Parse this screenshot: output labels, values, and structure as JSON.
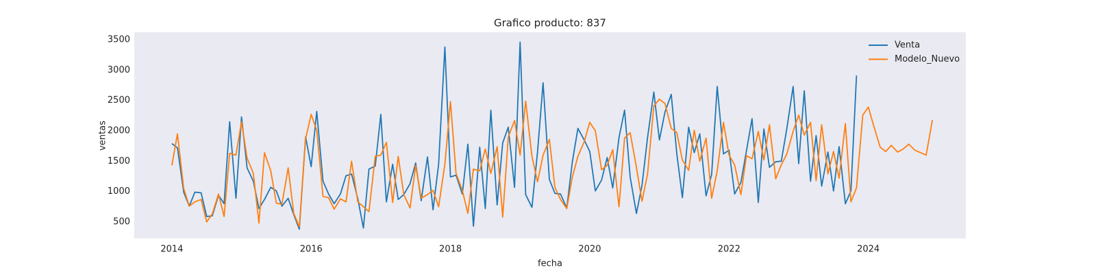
{
  "chart_data": {
    "type": "line",
    "title": "Grafico producto: 837",
    "x_label": "fecha",
    "y_label": "ventas",
    "x": [
      2014,
      2014.08,
      2014.17,
      2014.25,
      2014.33,
      2014.42,
      2014.5,
      2014.58,
      2014.67,
      2014.75,
      2014.83,
      2014.92,
      2015,
      2015.08,
      2015.17,
      2015.25,
      2015.33,
      2015.42,
      2015.5,
      2015.58,
      2015.67,
      2015.75,
      2015.83,
      2015.92,
      2016,
      2016.08,
      2016.17,
      2016.25,
      2016.33,
      2016.42,
      2016.5,
      2016.58,
      2016.67,
      2016.75,
      2016.83,
      2016.92,
      2017,
      2017.08,
      2017.17,
      2017.25,
      2017.33,
      2017.42,
      2017.5,
      2017.58,
      2017.67,
      2017.75,
      2017.83,
      2017.92,
      2018,
      2018.08,
      2018.17,
      2018.25,
      2018.33,
      2018.42,
      2018.5,
      2018.58,
      2018.67,
      2018.75,
      2018.83,
      2018.92,
      2019,
      2019.08,
      2019.17,
      2019.25,
      2019.33,
      2019.42,
      2019.5,
      2019.58,
      2019.67,
      2019.75,
      2019.83,
      2019.92,
      2020,
      2020.08,
      2020.17,
      2020.25,
      2020.33,
      2020.42,
      2020.5,
      2020.58,
      2020.67,
      2020.75,
      2020.83,
      2020.92,
      2021,
      2021.08,
      2021.17,
      2021.25,
      2021.33,
      2021.42,
      2021.5,
      2021.58,
      2021.67,
      2021.75,
      2021.83,
      2021.92,
      2022,
      2022.08,
      2022.17,
      2022.25,
      2022.33,
      2022.42,
      2022.5,
      2022.58,
      2022.67,
      2022.75,
      2022.83,
      2022.92,
      2023,
      2023.08,
      2023.17,
      2023.25,
      2023.33,
      2023.42,
      2023.5,
      2023.58,
      2023.67,
      2023.75,
      2023.83,
      2023.92,
      2024,
      2024.08,
      2024.17,
      2024.25,
      2024.33,
      2024.42,
      2024.5,
      2024.58,
      2024.67,
      2024.75,
      2024.83,
      2024.92
    ],
    "series": [
      {
        "name": "Venta",
        "color": "#1f77b4",
        "values": [
          1790,
          1720,
          990,
          760,
          990,
          980,
          590,
          600,
          940,
          800,
          2150,
          890,
          2230,
          1390,
          1170,
          720,
          870,
          1070,
          1010,
          760,
          890,
          620,
          380,
          1900,
          1410,
          2320,
          1170,
          960,
          800,
          960,
          1260,
          1290,
          880,
          400,
          1370,
          1420,
          2270,
          830,
          1450,
          870,
          950,
          1130,
          1470,
          850,
          1570,
          700,
          1450,
          3380,
          1240,
          1270,
          960,
          1780,
          430,
          1730,
          720,
          2340,
          780,
          1800,
          2060,
          1070,
          3460,
          950,
          740,
          1650,
          2790,
          1200,
          970,
          960,
          730,
          1490,
          2040,
          1850,
          1660,
          1010,
          1190,
          1560,
          1060,
          1890,
          2340,
          1240,
          640,
          1100,
          1890,
          2640,
          1850,
          2310,
          2600,
          1620,
          900,
          2060,
          1640,
          1950,
          930,
          1280,
          2730,
          1620,
          1680,
          960,
          1150,
          1670,
          2200,
          820,
          2030,
          1400,
          1490,
          1500,
          2040,
          2730,
          1460,
          2660,
          1170,
          1920,
          1090,
          1650,
          1010,
          1740,
          800,
          1010,
          2910,
          null,
          null,
          null,
          null,
          null,
          null,
          null,
          null,
          null,
          null,
          null,
          null,
          null
        ]
      },
      {
        "name": "Modelo_Nuevo",
        "color": "#ff7f0e",
        "values": [
          1430,
          1950,
          1050,
          760,
          830,
          870,
          500,
          630,
          960,
          590,
          1630,
          1600,
          2150,
          1550,
          1300,
          480,
          1640,
          1340,
          810,
          790,
          1390,
          640,
          420,
          1870,
          2270,
          2010,
          920,
          900,
          710,
          880,
          830,
          1500,
          830,
          750,
          670,
          1580,
          1600,
          1810,
          820,
          1580,
          950,
          730,
          1430,
          890,
          950,
          1020,
          750,
          1450,
          2480,
          1300,
          1020,
          640,
          1370,
          1340,
          1700,
          1300,
          1740,
          580,
          1900,
          2170,
          1600,
          2490,
          1580,
          1160,
          1600,
          1860,
          1070,
          870,
          720,
          1240,
          1580,
          1820,
          2140,
          2000,
          1360,
          1430,
          1690,
          750,
          1880,
          1970,
          1400,
          840,
          1290,
          2410,
          2520,
          2450,
          2040,
          1970,
          1520,
          1350,
          2010,
          1500,
          1880,
          890,
          1340,
          2140,
          1600,
          1440,
          950,
          1590,
          1540,
          1990,
          1520,
          2100,
          1210,
          1440,
          1620,
          1990,
          2260,
          1930,
          2140,
          1180,
          2100,
          1290,
          1660,
          1220,
          2120,
          830,
          1060,
          2260,
          2390,
          2070,
          1730,
          1660,
          1760,
          1650,
          1700,
          1780,
          1680,
          1640,
          1600,
          2180
        ]
      }
    ],
    "xlim": [
      2013.46,
      2025.4
    ],
    "ylim": [
      229,
      3624
    ],
    "xticks": [
      2014,
      2016,
      2018,
      2020,
      2022,
      2024
    ],
    "yticks": [
      500,
      1000,
      1500,
      2000,
      2500,
      3000,
      3500
    ],
    "grid": false,
    "legend": "upper right"
  }
}
